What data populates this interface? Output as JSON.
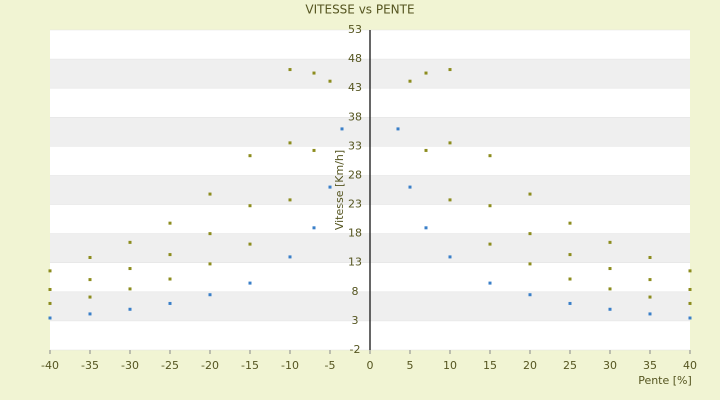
{
  "chart_data": {
    "type": "scatter",
    "title": "VITESSE vs PENTE",
    "x_label": "Pente [%]",
    "y_label": "Vitesse [Km/h]",
    "xlim": [
      -40,
      40
    ],
    "xticks": [
      -40,
      -35,
      -30,
      -25,
      -20,
      -15,
      -10,
      -5,
      0,
      5,
      10,
      15,
      20,
      25,
      30,
      35,
      40
    ],
    "ylim": [
      -2,
      53
    ],
    "yticks": [
      -2,
      3,
      8,
      13,
      18,
      23,
      28,
      33,
      38,
      43,
      48,
      53
    ],
    "grid": true,
    "series": [
      {
        "color": "#3a7fc8",
        "x": [
          -40,
          -35,
          -30,
          -25,
          -20,
          -15,
          -10,
          -7,
          -5,
          -3.5,
          3.5,
          5,
          7,
          10,
          15,
          20,
          25,
          30,
          35,
          40
        ],
        "values": [
          3.5,
          4.2,
          5,
          6,
          7.5,
          9.5,
          14,
          19,
          26,
          36,
          36,
          26,
          19,
          14,
          9.5,
          7.5,
          6,
          5,
          4.2,
          3.5
        ]
      },
      {
        "color": "#8c8c1e",
        "x": [
          -40,
          -35,
          -30,
          -25,
          -20,
          -15,
          -10,
          -7,
          -5,
          -40,
          -35,
          -30,
          -25,
          -20,
          -15,
          -10,
          -7,
          -40,
          -35,
          -30,
          -25,
          -20,
          -15,
          -10,
          5,
          7,
          10,
          15,
          20,
          25,
          30,
          35,
          40,
          7,
          10,
          15,
          20,
          25,
          30,
          35,
          40,
          10,
          15,
          20,
          25,
          30,
          35,
          40
        ],
        "values": [
          6,
          7.1,
          8.5,
          10.2,
          12.8,
          16.2,
          23.8,
          32.3,
          44.2,
          8.4,
          10.1,
          12,
          14.4,
          18,
          22.8,
          33.6,
          45.6,
          11.6,
          13.9,
          16.5,
          19.8,
          24.8,
          31.4,
          46.2,
          44.2,
          32.3,
          23.8,
          16.2,
          12.8,
          10.2,
          8.5,
          7.1,
          6,
          45.6,
          33.6,
          22.8,
          18,
          14.4,
          12,
          10.1,
          8.4,
          46.2,
          31.4,
          24.8,
          19.8,
          16.5,
          13.9,
          11.6
        ]
      }
    ]
  }
}
